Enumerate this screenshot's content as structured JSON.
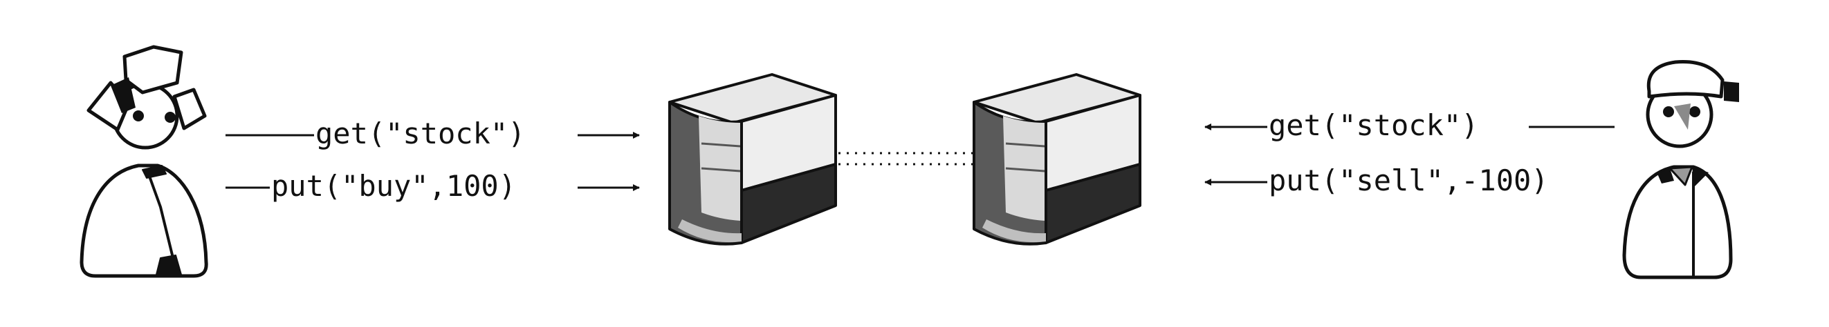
{
  "left_client": {
    "calls": [
      "get(\"stock\")",
      "put(\"buy\",100)"
    ]
  },
  "right_client": {
    "calls": [
      "get(\"stock\")",
      "put(\"sell\",-100)"
    ]
  },
  "icons": {
    "left_person": "person-with-hat-icon",
    "right_person": "person-with-cap-icon",
    "servers": "database-server-icon",
    "replication": "dotted-link"
  }
}
